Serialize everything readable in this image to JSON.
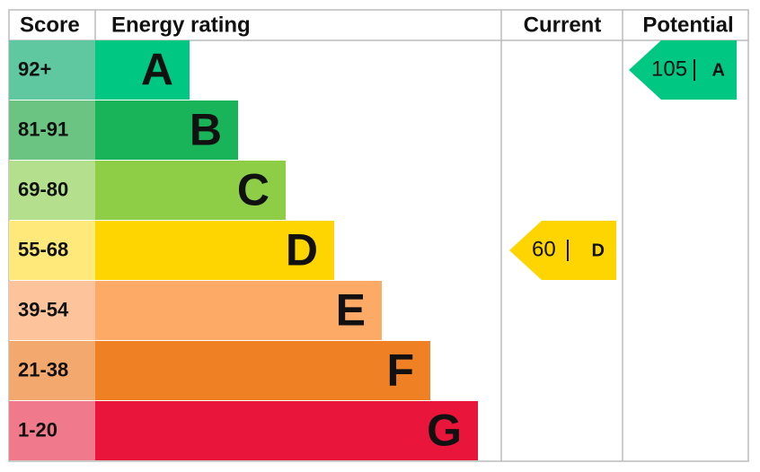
{
  "chart_data": {
    "type": "epc",
    "headers": {
      "score": "Score",
      "rating": "Energy rating",
      "current": "Current",
      "potential": "Potential"
    },
    "bands": [
      {
        "score": "92+",
        "letter": "A",
        "color": "#00c781",
        "score_color": "#5fc8a0"
      },
      {
        "score": "81-91",
        "letter": "B",
        "color": "#19b459",
        "score_color": "#6cc483"
      },
      {
        "score": "69-80",
        "letter": "C",
        "color": "#8dce46",
        "score_color": "#b4e08e"
      },
      {
        "score": "55-68",
        "letter": "D",
        "color": "#ffd500",
        "score_color": "#ffe97a"
      },
      {
        "score": "39-54",
        "letter": "E",
        "color": "#fcaa65",
        "score_color": "#fdc49c"
      },
      {
        "score": "21-38",
        "letter": "F",
        "color": "#ef8023",
        "score_color": "#f3a86d"
      },
      {
        "score": "1-20",
        "letter": "G",
        "color": "#e9153b",
        "score_color": "#f07a8c"
      }
    ],
    "current": {
      "value": 60,
      "letter": "D",
      "color": "#ffd500"
    },
    "potential": {
      "value": 105,
      "letter": "A",
      "color": "#00c781"
    }
  }
}
